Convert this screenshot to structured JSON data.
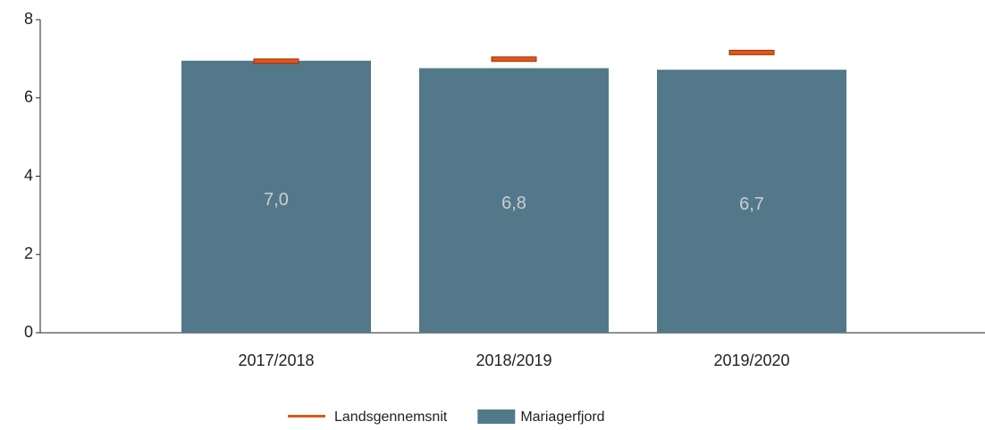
{
  "chart_data": {
    "type": "bar",
    "categories": [
      "2017/2018",
      "2018/2019",
      "2019/2020"
    ],
    "series": [
      {
        "name": "Mariagerfjord",
        "color": "#53788a",
        "values": [
          6.95,
          6.76,
          6.72
        ],
        "value_labels": [
          "7,0",
          "6,8",
          "6,7"
        ]
      },
      {
        "name": "Landsgennemsnit",
        "color": "#e0561b",
        "values": [
          6.94,
          6.99,
          7.16
        ],
        "mark": "line"
      }
    ],
    "ylim": [
      0,
      8
    ],
    "yticks": [
      0,
      2,
      4,
      6,
      8
    ],
    "legend": "bottom"
  }
}
